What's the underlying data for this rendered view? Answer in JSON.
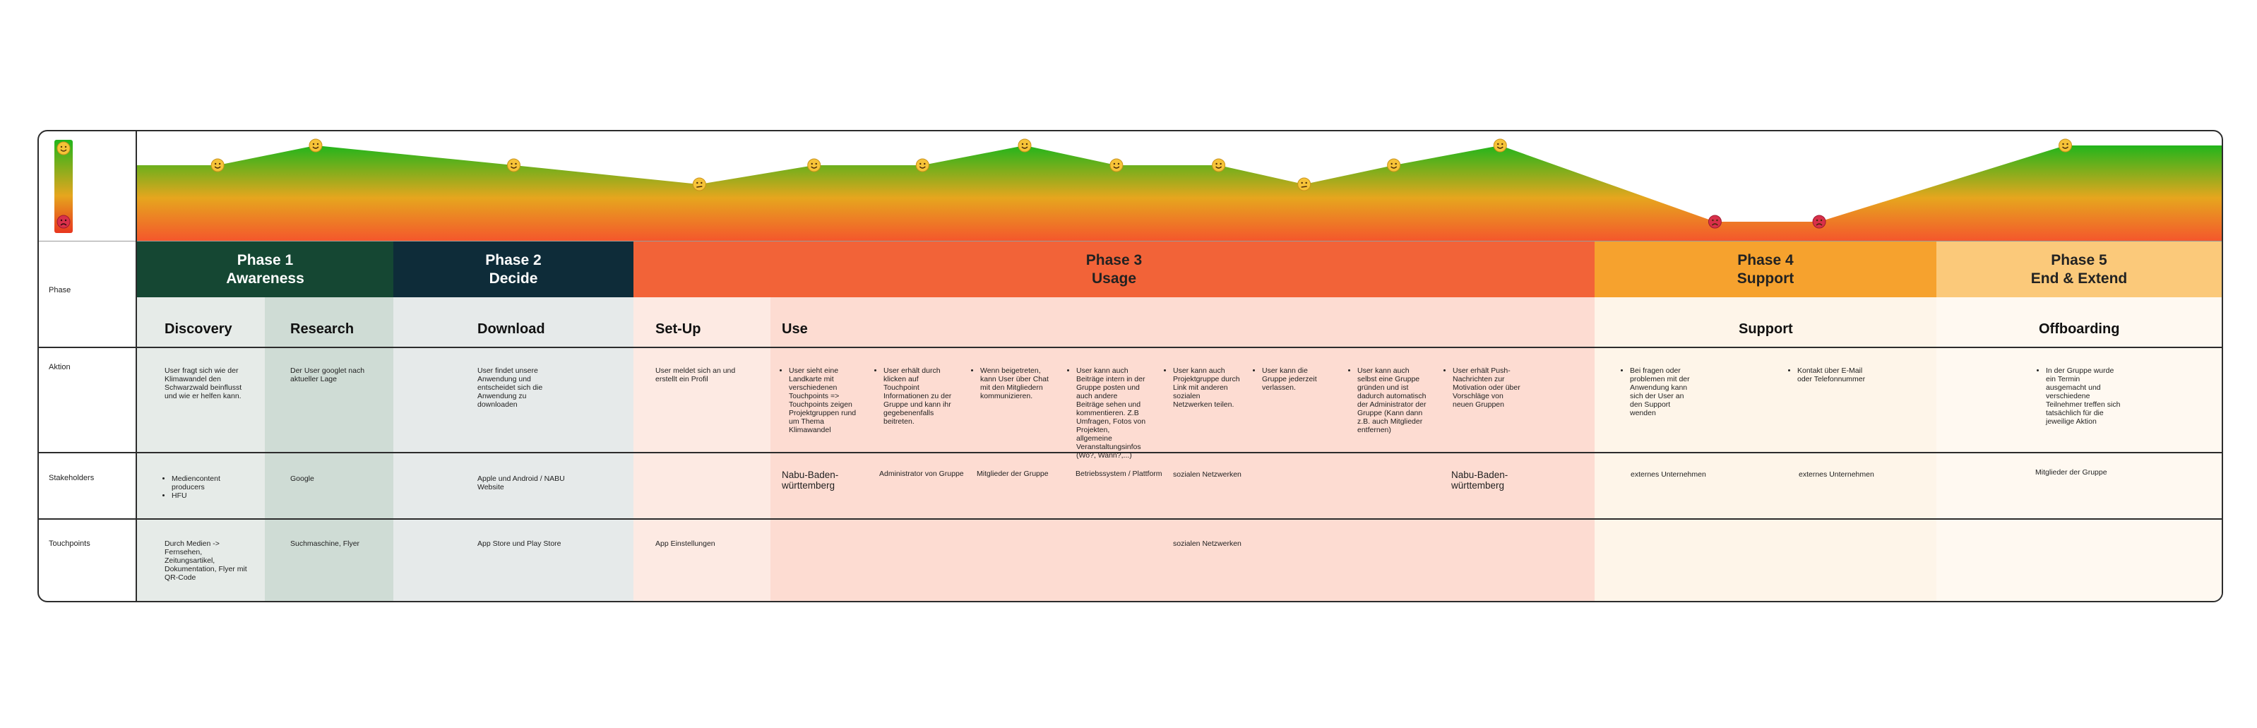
{
  "colors": {
    "phase1": "#154733",
    "phase2": "#0e2c39",
    "phase3": "#f26338",
    "phase4": "#f6a22e",
    "phase5": "#fbc97a",
    "curve_top": "#22b51b",
    "curve_mid": "#e6a61e",
    "curve_bottom": "#f4572c"
  },
  "row_labels": {
    "phase": "Phase",
    "aktion": "Aktion",
    "stakeholders": "Stakeholders",
    "touchpoints": "Touchpoints"
  },
  "phases": [
    {
      "line1": "Phase 1",
      "line2": "Awareness"
    },
    {
      "line1": "Phase 2",
      "line2": "Decide"
    },
    {
      "line1": "Phase 3",
      "line2": "Usage"
    },
    {
      "line1": "Phase 4",
      "line2": "Support"
    },
    {
      "line1": "Phase 5",
      "line2": "End & Extend"
    }
  ],
  "subphases": {
    "discovery": "Discovery",
    "research": "Research",
    "download": "Download",
    "setup": "Set-Up",
    "use": "Use",
    "support": "Support",
    "offboarding": "Offboarding"
  },
  "aktion": {
    "discovery": "User fragt sich wie der Klimawandel den Schwarzwald beinflusst und wie er helfen kann.",
    "research": "Der User googlet nach aktueller Lage",
    "download": "User findet unsere Anwendung und entscheidet sich die Anwendung zu downloaden",
    "setup": "User meldet sich an und erstellt ein Profil",
    "use": [
      "User sieht eine Landkarte mit verschiedenen Touchpoints => Touchpoints zeigen Projektgruppen rund um Thema Klimawandel",
      "User erhält durch klicken auf Touchpoint Informationen zu der Gruppe und kann ihr gegebenenfalls beitreten.",
      "Wenn beigetreten, kann User über Chat mit den Mitgliedern kommunizieren.",
      "User kann auch Beiträge intern in der Gruppe posten und auch andere Beiträge sehen und kommentieren. Z.B Umfragen, Fotos von Projekten, allgemeine Veranstaltungsinfos (Wo?, Wann?,...)",
      "User kann auch Projektgruppe durch Link mit anderen sozialen Netzwerken teilen.",
      "User kann die Gruppe jederzeit verlassen.",
      "User kann auch selbst eine Gruppe gründen und ist dadurch automatisch der Administrator der Gruppe (Kann dann z.B. auch Mitglieder entfernen)",
      "User erhält Push-Nachrichten zur Motivation oder über Vorschläge von neuen Gruppen"
    ],
    "support": [
      "Bei fragen oder problemen mit der Anwendung kann sich der User an den Support wenden",
      "Kontakt über E-Mail oder Telefonnummer"
    ],
    "offboarding": "In der Gruppe wurde ein Termin ausgemacht und verschiedene Teilnehmer treffen sich tatsächlich für die jeweilige Aktion"
  },
  "stakeholders": {
    "discovery": [
      "Mediencontent producers",
      "HFU"
    ],
    "research": "Google",
    "download": "Apple und Android / NABU Website",
    "use": [
      "Nabu-Baden-württemberg",
      "Administrator von Gruppe",
      "Mitglieder der Gruppe",
      "Betriebssystem / Plattform",
      "sozialen Netzwerken",
      "Nabu-Baden-württemberg"
    ],
    "support": [
      "externes Unternehmen",
      "externes Unternehmen"
    ],
    "offboarding": "Mitglieder der Gruppe"
  },
  "touchpoints": {
    "discovery": "Durch Medien -> Fernsehen, Zeitungsartikel, Dokumentation, Flyer mit QR-Code",
    "research": "Suchmaschine, Flyer",
    "download": "App Store und Play Store",
    "setup": "App Einstellungen",
    "use": "sozialen Netzwerken"
  },
  "emotion_points": [
    {
      "x": 0,
      "mood": "neutral"
    },
    {
      "x": 0.039,
      "mood": "happy"
    },
    {
      "x": 0.086,
      "mood": "very-happy"
    },
    {
      "x": 0.181,
      "mood": "happy"
    },
    {
      "x": 0.27,
      "mood": "neutral"
    },
    {
      "x": 0.325,
      "mood": "happy"
    },
    {
      "x": 0.377,
      "mood": "happy"
    },
    {
      "x": 0.426,
      "mood": "very-happy"
    },
    {
      "x": 0.47,
      "mood": "happy"
    },
    {
      "x": 0.519,
      "mood": "happy"
    },
    {
      "x": 0.56,
      "mood": "neutral"
    },
    {
      "x": 0.603,
      "mood": "happy"
    },
    {
      "x": 0.654,
      "mood": "very-happy"
    },
    {
      "x": 0.757,
      "mood": "sad"
    },
    {
      "x": 0.807,
      "mood": "sad"
    },
    {
      "x": 0.925,
      "mood": "very-happy"
    },
    {
      "x": 1,
      "mood": "very-happy"
    }
  ]
}
